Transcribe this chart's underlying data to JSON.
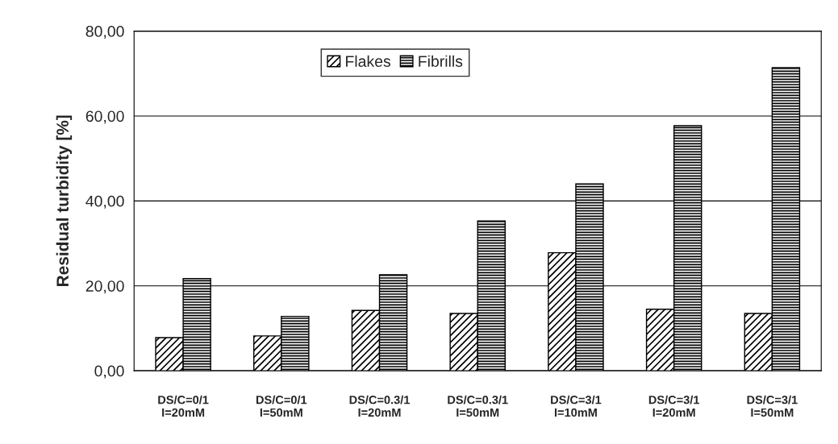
{
  "chart_data": {
    "type": "bar",
    "ylabel": "Residual turbidity [%]",
    "categories": [
      "DS/C=0/1\nI=20mM",
      "DS/C=0/1\nI=50mM",
      "DS/C=0.3/1\nI=20mM",
      "DS/C=0.3/1\nI=50mM",
      "DS/C=3/1\nI=10mM",
      "DS/C=3/1\nI=20mM",
      "DS/C=3/1\nI=50mM"
    ],
    "series": [
      {
        "name": "Flakes",
        "color": "#000000",
        "values": [
          7.8,
          8.2,
          14.2,
          13.5,
          27.8,
          14.5,
          13.5
        ]
      },
      {
        "name": "Fibrills",
        "color": "#000000",
        "values": [
          21.7,
          12.8,
          22.6,
          35.3,
          44.0,
          57.7,
          71.4
        ]
      }
    ],
    "ylim": [
      0,
      80
    ],
    "yticks": [
      {
        "value": 0,
        "label": "0,00"
      },
      {
        "value": 20,
        "label": "20,00"
      },
      {
        "value": 40,
        "label": "40,00"
      },
      {
        "value": 60,
        "label": "60,00"
      },
      {
        "value": 80,
        "label": "80,00"
      }
    ],
    "grid": "y",
    "legend": "top"
  }
}
